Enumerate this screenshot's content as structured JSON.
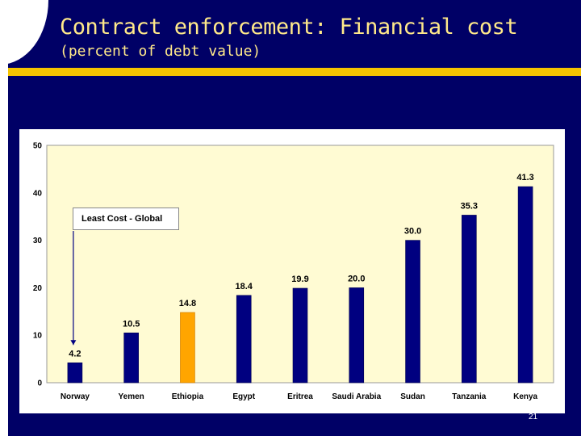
{
  "slide": {
    "title": "Contract enforcement:  Financial cost",
    "subtitle": "(percent of debt value)",
    "page_number": "21",
    "colors": {
      "background": "#000066",
      "title_text": "#ffe98a",
      "accent_rule": "#f5c400",
      "plot_area": "#fffbd3",
      "bar_default": "#000080",
      "bar_highlight": "#ffa500"
    }
  },
  "chart_data": {
    "type": "bar",
    "categories": [
      "Norway",
      "Yemen",
      "Ethiopia",
      "Egypt",
      "Eritrea",
      "Saudi Arabia",
      "Sudan",
      "Tanzania",
      "Kenya"
    ],
    "values": [
      4.2,
      10.5,
      14.8,
      18.4,
      19.9,
      20.0,
      30.0,
      35.3,
      41.3
    ],
    "data_labels": [
      "4.2",
      "10.5",
      "14.8",
      "18.4",
      "19.9",
      "20.0",
      "30.0",
      "35.3",
      "41.3"
    ],
    "highlight_category": "Ethiopia",
    "ylim": [
      0,
      50
    ],
    "yticks": [
      "0",
      "10",
      "20",
      "30",
      "40",
      "50"
    ],
    "grid": false,
    "annotation": {
      "text": "Least Cost - Global",
      "points_to": "Norway"
    }
  }
}
